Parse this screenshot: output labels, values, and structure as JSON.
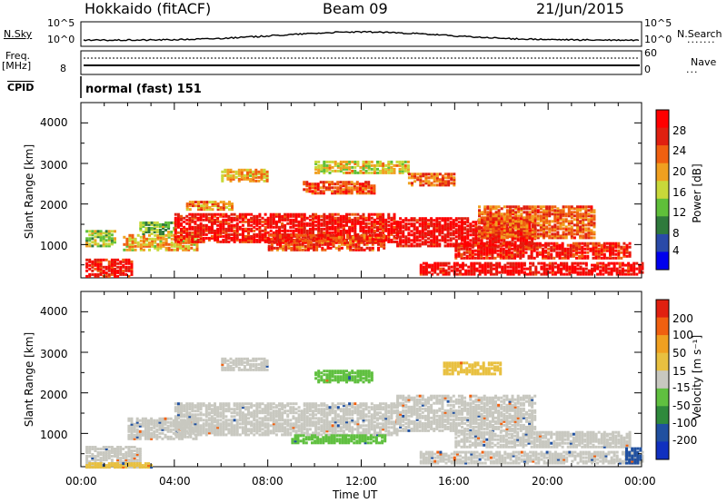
{
  "header": {
    "station": "Hokkaido (fitACF)",
    "beam": "Beam 09",
    "date": "21/Jun/2015"
  },
  "noise_panel": {
    "left_label": "N.Sky",
    "right_label": "N.Search",
    "left_ticks": [
      "10^5",
      "10^0"
    ],
    "right_ticks": [
      "10^5",
      "10^0"
    ]
  },
  "freq_panel": {
    "left_label_line1": "Freq.",
    "left_label_line2": "[MHz]",
    "left_ticks": [
      "8"
    ],
    "right_ticks": [
      "60",
      "0"
    ],
    "right_label": "Nave"
  },
  "cpid_panel": {
    "label": "CPID",
    "value": "normal (fast) 151"
  },
  "power_panel": {
    "ylabel": "Slant Range [km]",
    "yticks": [
      "4000",
      "3000",
      "2000",
      "1000"
    ],
    "colorbar_label": "Power [dB]",
    "colorbar_ticks": [
      "28",
      "24",
      "20",
      "16",
      "12",
      "8",
      "4"
    ],
    "colors": [
      "#0000ee",
      "#2a4aa8",
      "#2f7a3c",
      "#5fbf3a",
      "#c8d83a",
      "#f0a020",
      "#f06010",
      "#e02010",
      "#ff0000"
    ]
  },
  "velocity_panel": {
    "ylabel": "Slant Range [km]",
    "yticks": [
      "4000",
      "3000",
      "2000",
      "1000"
    ],
    "colorbar_label": "Velocity [m s⁻¹]",
    "colorbar_ticks": [
      "200",
      "100",
      "50",
      "15",
      "-15",
      "-50",
      "-100",
      "-200"
    ],
    "colors": [
      "#1030c0",
      "#2050a0",
      "#2f8a3c",
      "#60c040",
      "#c8c8c0",
      "#e8c040",
      "#f0a020",
      "#f06010",
      "#e02010"
    ]
  },
  "xaxis": {
    "ticks": [
      "00:00",
      "04:00",
      "08:00",
      "12:00",
      "16:00",
      "20:00",
      "00:00"
    ],
    "label": "Time UT"
  },
  "chart_data": [
    {
      "type": "heatmap",
      "title": "Power",
      "x_range_hours": [
        0,
        24
      ],
      "y_range_km": [
        180,
        4500
      ],
      "value_units": "dB",
      "value_range": [
        0,
        30
      ],
      "regions": [
        {
          "t0": 0.2,
          "t1": 2.2,
          "r0": 250,
          "r1": 700,
          "v": 27
        },
        {
          "t0": 0.2,
          "t1": 1.5,
          "r0": 1000,
          "r1": 1400,
          "v": 14
        },
        {
          "t0": 1.8,
          "t1": 5.0,
          "r0": 900,
          "r1": 1300,
          "v": 18
        },
        {
          "t0": 2.5,
          "t1": 4.0,
          "r0": 1300,
          "r1": 1600,
          "v": 12
        },
        {
          "t0": 4.0,
          "t1": 13.5,
          "r0": 1100,
          "r1": 1800,
          "v": 27
        },
        {
          "t0": 8.0,
          "t1": 13.0,
          "r0": 900,
          "r1": 1300,
          "v": 24
        },
        {
          "t0": 13.5,
          "t1": 19.5,
          "r0": 1000,
          "r1": 1700,
          "v": 28
        },
        {
          "t0": 14.5,
          "t1": 24.0,
          "r0": 300,
          "r1": 600,
          "v": 28
        },
        {
          "t0": 16.0,
          "t1": 23.5,
          "r0": 700,
          "r1": 1100,
          "v": 26
        },
        {
          "t0": 17.0,
          "t1": 22.0,
          "r0": 1200,
          "r1": 2000,
          "v": 22
        },
        {
          "t0": 9.5,
          "t1": 12.5,
          "r0": 2300,
          "r1": 2600,
          "v": 24
        },
        {
          "t0": 6.0,
          "t1": 8.0,
          "r0": 2600,
          "r1": 2900,
          "v": 18
        },
        {
          "t0": 10.0,
          "t1": 14.0,
          "r0": 2800,
          "r1": 3100,
          "v": 16
        },
        {
          "t0": 4.5,
          "t1": 6.5,
          "r0": 1900,
          "r1": 2100,
          "v": 20
        },
        {
          "t0": 14.0,
          "t1": 16.0,
          "r0": 2500,
          "r1": 2800,
          "v": 22
        }
      ]
    },
    {
      "type": "heatmap",
      "title": "Velocity",
      "x_range_hours": [
        0,
        24
      ],
      "y_range_km": [
        180,
        4500
      ],
      "value_units": "m s^-1",
      "value_range": [
        -200,
        200
      ],
      "regions": [
        {
          "t0": 0.2,
          "t1": 2.5,
          "r0": 200,
          "r1": 700,
          "v": 0
        },
        {
          "t0": 2.0,
          "t1": 5.0,
          "r0": 900,
          "r1": 1400,
          "v": 0
        },
        {
          "t0": 4.0,
          "t1": 13.5,
          "r0": 1000,
          "r1": 1800,
          "v": 0
        },
        {
          "t0": 9.0,
          "t1": 13.0,
          "r0": 800,
          "r1": 1000,
          "v": -30
        },
        {
          "t0": 13.5,
          "t1": 19.5,
          "r0": 1100,
          "r1": 2000,
          "v": 5
        },
        {
          "t0": 14.5,
          "t1": 24.0,
          "r0": 300,
          "r1": 600,
          "v": 0
        },
        {
          "t0": 16.0,
          "t1": 23.5,
          "r0": 700,
          "r1": 1100,
          "v": 2
        },
        {
          "t0": 10.0,
          "t1": 12.5,
          "r0": 2300,
          "r1": 2600,
          "v": -30
        },
        {
          "t0": 6.0,
          "t1": 8.0,
          "r0": 2600,
          "r1": 2900,
          "v": 0
        },
        {
          "t0": 15.5,
          "t1": 18.0,
          "r0": 2500,
          "r1": 2800,
          "v": 40
        },
        {
          "t0": 0.2,
          "t1": 3.0,
          "r0": 200,
          "r1": 300,
          "v": 60
        },
        {
          "t0": 23.3,
          "t1": 24.0,
          "r0": 300,
          "r1": 700,
          "v": -120
        }
      ]
    }
  ]
}
